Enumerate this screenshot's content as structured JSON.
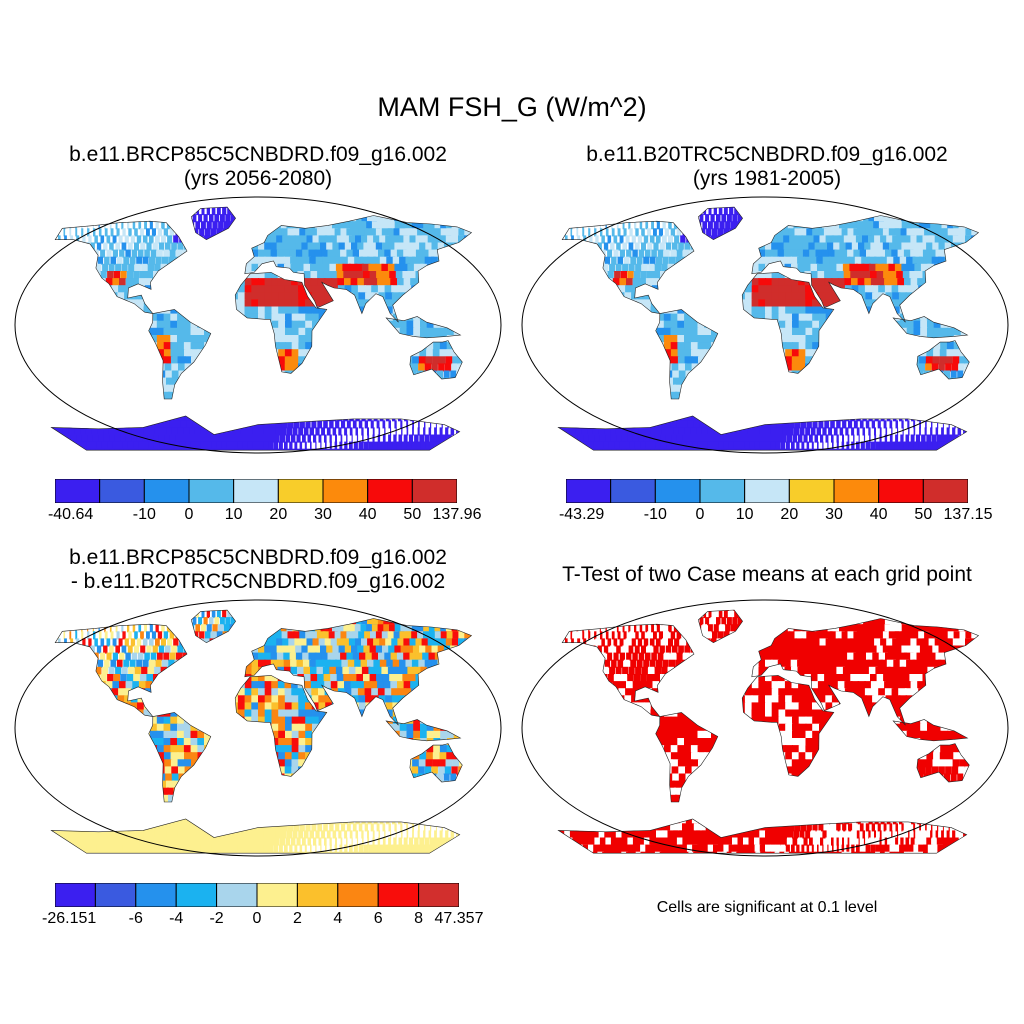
{
  "main_title": "MAM FSH_G (W/m^2)",
  "panels": {
    "p1": {
      "title_line1": "b.e11.BRCP85C5CNBDRD.f09_g16.002",
      "title_line2": "(yrs 2056-2080)",
      "colorbar": {
        "colors": [
          "#3b1ff0",
          "#3a5ae0",
          "#2591ed",
          "#55b9ea",
          "#c6e6f7",
          "#f8cd2a",
          "#fc8a0c",
          "#f70a0a",
          "#d02d2b"
        ],
        "labels": [
          "-40.64",
          "-10",
          "0",
          "10",
          "20",
          "30",
          "40",
          "50",
          "137.96"
        ]
      }
    },
    "p2": {
      "title_line1": "b.e11.B20TRC5CNBDRD.f09_g16.002",
      "title_line2": "(yrs 1981-2005)",
      "colorbar": {
        "colors": [
          "#3b1ff0",
          "#3a5ae0",
          "#2591ed",
          "#55b9ea",
          "#c6e6f7",
          "#f8cd2a",
          "#fc8a0c",
          "#f70a0a",
          "#d02d2b"
        ],
        "labels": [
          "-43.29",
          "-10",
          "0",
          "10",
          "20",
          "30",
          "40",
          "50",
          "137.15"
        ]
      }
    },
    "p3": {
      "title_line1": "b.e11.BRCP85C5CNBDRD.f09_g16.002",
      "title_line2": "- b.e11.B20TRC5CNBDRD.f09_g16.002",
      "colorbar": {
        "colors": [
          "#3b1ff0",
          "#3a5ae0",
          "#2591ed",
          "#1bb2f0",
          "#a9d5ec",
          "#fdf08f",
          "#fbc02c",
          "#fb8612",
          "#f80d0b",
          "#d22f2d"
        ],
        "labels": [
          "-26.151",
          "-6",
          "-4",
          "-2",
          "0",
          "2",
          "4",
          "6",
          "8",
          "47.357"
        ]
      }
    },
    "p4": {
      "title": "T-Test of two Case means at each grid point",
      "note": "Cells are significant at 0.1 level",
      "sig_color": "#f00000"
    }
  }
}
